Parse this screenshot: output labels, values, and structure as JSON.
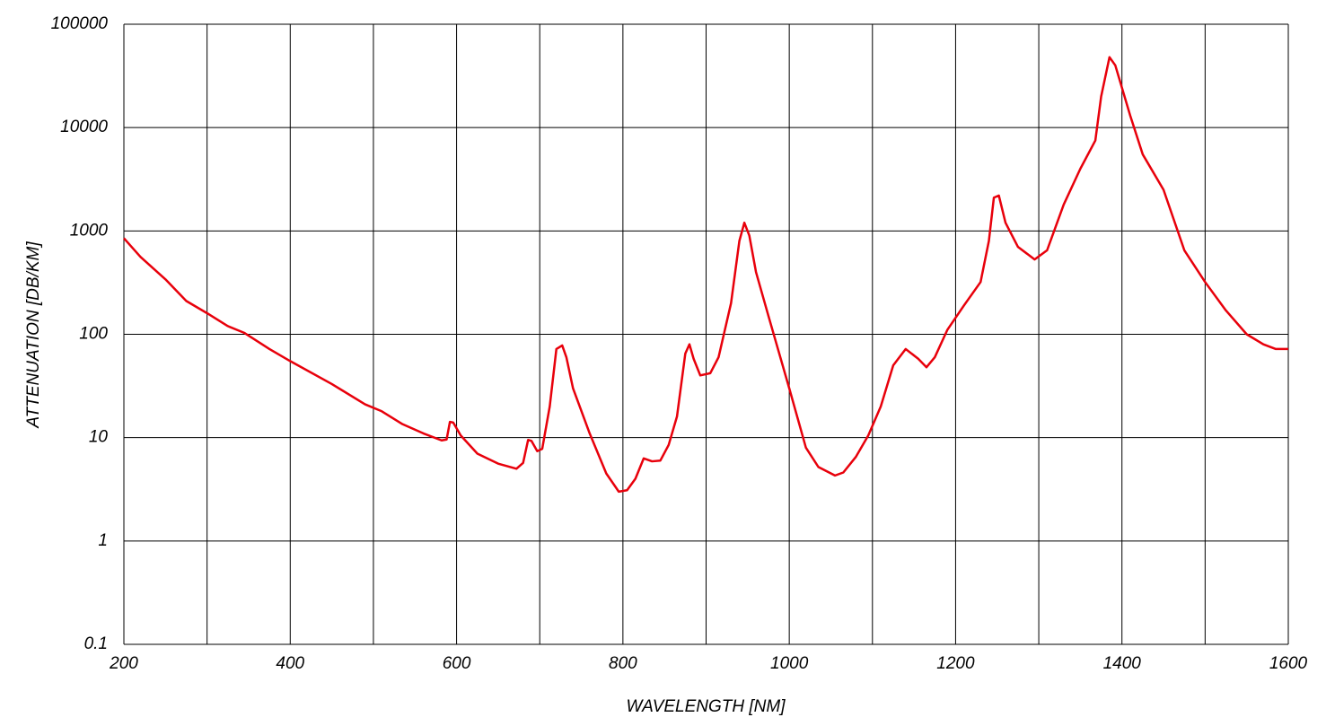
{
  "chart_data": {
    "type": "line",
    "x_label": "WAVELENGTH [NM]",
    "y_label": "ATTENUATION [DB/KM]",
    "x": [
      200,
      220,
      250,
      275,
      300,
      325,
      345,
      375,
      400,
      450,
      490,
      510,
      535,
      560,
      582,
      588,
      592,
      596,
      605,
      625,
      650,
      672,
      680,
      686,
      690,
      697,
      703,
      712,
      720,
      727,
      732,
      740,
      760,
      780,
      795,
      805,
      815,
      825,
      835,
      845,
      855,
      865,
      875,
      880,
      885,
      893,
      905,
      915,
      930,
      940,
      946,
      952,
      960,
      975,
      1000,
      1020,
      1035,
      1055,
      1065,
      1080,
      1095,
      1110,
      1125,
      1140,
      1155,
      1165,
      1175,
      1190,
      1210,
      1230,
      1240,
      1246,
      1252,
      1260,
      1275,
      1295,
      1310,
      1330,
      1350,
      1368,
      1375,
      1385,
      1392,
      1410,
      1425,
      1450,
      1475,
      1500,
      1525,
      1550,
      1570,
      1585,
      1600
    ],
    "values": [
      850,
      560,
      340,
      210,
      160,
      120,
      103,
      72,
      55,
      33,
      21,
      18,
      13.5,
      11,
      9.4,
      9.6,
      14.2,
      14,
      10.5,
      7,
      5.6,
      5,
      5.7,
      9.5,
      9.3,
      7.4,
      7.8,
      20,
      72,
      78,
      60,
      30,
      11,
      4.5,
      3,
      3.1,
      4,
      6.3,
      5.9,
      6,
      8.5,
      16,
      65,
      80,
      58,
      40,
      42,
      60,
      200,
      800,
      1200,
      900,
      400,
      150,
      30,
      8,
      5.2,
      4.3,
      4.6,
      6.5,
      10.5,
      20,
      50,
      72,
      58,
      48,
      60,
      110,
      190,
      320,
      800,
      2100,
      2200,
      1200,
      700,
      530,
      650,
      1800,
      4000,
      7500,
      20000,
      48000,
      40000,
      13000,
      5500,
      2500,
      650,
      320,
      170,
      100,
      80,
      72,
      72
    ],
    "color": "#e8000b",
    "xlim": [
      200,
      1600
    ],
    "xticks": [
      200,
      400,
      600,
      800,
      1000,
      1200,
      1400,
      1600
    ],
    "x_minor_ticks": [
      300,
      500,
      700,
      900,
      1100,
      1300,
      1500
    ],
    "ylim": [
      0.1,
      100000
    ],
    "yticks": [
      0.1,
      1,
      10,
      100,
      1000,
      10000,
      100000
    ],
    "y_scale": "log",
    "grid": true
  }
}
